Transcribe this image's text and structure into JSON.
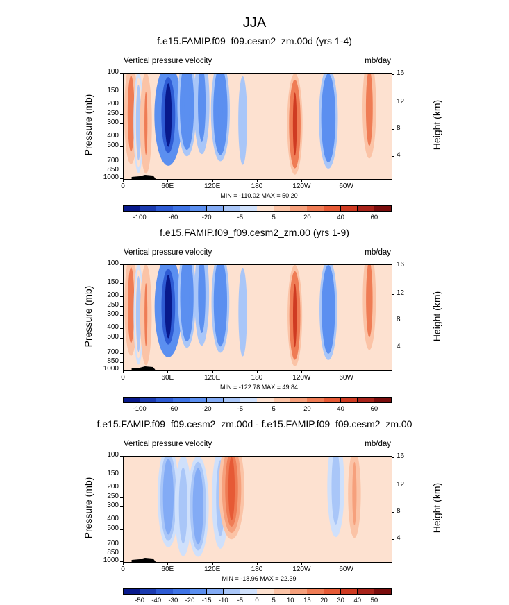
{
  "page_title": "JJA",
  "panels": [
    {
      "title": "f.e15.FAMIP.f09_f09.cesm2_zm.00d (yrs 1-4)",
      "subtitle_left": "Vertical pressure velocity",
      "subtitle_right": "mb/day",
      "minmax": "MIN = -110.02  MAX =  50.20"
    },
    {
      "title": "f.e15.FAMIP.f09_f09.cesm2_zm.00 (yrs 1-9)",
      "subtitle_left": "Vertical pressure velocity",
      "subtitle_right": "mb/day",
      "minmax": "MIN = -122.78  MAX =  49.84"
    },
    {
      "title": "f.e15.FAMIP.f09_f09.cesm2_zm.00d - f.e15.FAMIP.f09_f09.cesm2_zm.00",
      "subtitle_left": "Vertical pressure velocity",
      "subtitle_right": "mb/day",
      "minmax": "MIN = -18.96  MAX =  22.39"
    }
  ],
  "axes": {
    "y_left_title": "Pressure (mb)",
    "y_right_title": "Height (km)",
    "y_left_ticks": [
      "100",
      "150",
      "200",
      "250",
      "300",
      "400",
      "500",
      "700",
      "850",
      "1000"
    ],
    "y_right_ticks": [
      "16",
      "12",
      "8",
      "4"
    ],
    "x_ticks": [
      "0",
      "60E",
      "120E",
      "180",
      "120W",
      "60W"
    ]
  },
  "colorbars": {
    "main": {
      "labels": [
        "-100",
        "-60",
        "-20",
        "-5",
        "5",
        "20",
        "40",
        "60"
      ],
      "colors": [
        "#08198c",
        "#1b3bb0",
        "#2e5bd4",
        "#3f74e6",
        "#5b8ff0",
        "#83abf5",
        "#a9c6f8",
        "#cfe0fb",
        "#fde1d0",
        "#fbc3a6",
        "#f6a07c",
        "#ef7c55",
        "#e65a36",
        "#cf3b22",
        "#a8231a",
        "#7a0d0d"
      ]
    },
    "diff": {
      "labels": [
        "-50",
        "-40",
        "-30",
        "-20",
        "-15",
        "-10",
        "-5",
        "0",
        "5",
        "10",
        "15",
        "20",
        "30",
        "40",
        "50"
      ],
      "colors": [
        "#08198c",
        "#1b3bb0",
        "#2e5bd4",
        "#3f74e6",
        "#5b8ff0",
        "#83abf5",
        "#a9c6f8",
        "#cfe0fb",
        "#fde1d0",
        "#fbc3a6",
        "#f6a07c",
        "#ef7c55",
        "#e65a36",
        "#cf3b22",
        "#a8231a",
        "#7a0d0d"
      ]
    }
  },
  "chart_data": [
    {
      "type": "heatmap",
      "title": "f.e15.FAMIP.f09_f09.cesm2_zm.00d (yrs 1-4)",
      "subtitle": "Vertical pressure velocity",
      "units": "mb/day",
      "ylabel": "Pressure (mb)",
      "ylabel_right": "Height (km)",
      "x_ticks": [
        "0",
        "60E",
        "120E",
        "180",
        "120W",
        "60W"
      ],
      "y_ticks": [
        100,
        150,
        200,
        250,
        300,
        400,
        500,
        700,
        850,
        1000
      ],
      "ylim": [
        1000,
        100
      ],
      "y_scale": "log",
      "xlim": [
        0,
        360
      ],
      "min": -110.02,
      "max": 50.2,
      "contour_levels": [
        -100,
        -60,
        -20,
        -5,
        5,
        20,
        40,
        60
      ],
      "features": [
        {
          "lon": 10,
          "value": 30
        },
        {
          "lon": 20,
          "value": -10
        },
        {
          "lon": 30,
          "value": 20
        },
        {
          "lon": 60,
          "value": -110
        },
        {
          "lon": 85,
          "value": -60
        },
        {
          "lon": 105,
          "value": -40
        },
        {
          "lon": 130,
          "value": -60
        },
        {
          "lon": 160,
          "value": -20
        },
        {
          "lon": 230,
          "value": 40
        },
        {
          "lon": 275,
          "value": -60
        },
        {
          "lon": 330,
          "value": 30
        }
      ]
    },
    {
      "type": "heatmap",
      "title": "f.e15.FAMIP.f09_f09.cesm2_zm.00 (yrs 1-9)",
      "subtitle": "Vertical pressure velocity",
      "units": "mb/day",
      "ylabel": "Pressure (mb)",
      "ylabel_right": "Height (km)",
      "x_ticks": [
        "0",
        "60E",
        "120E",
        "180",
        "120W",
        "60W"
      ],
      "y_ticks": [
        100,
        150,
        200,
        250,
        300,
        400,
        500,
        700,
        850,
        1000
      ],
      "ylim": [
        1000,
        100
      ],
      "y_scale": "log",
      "xlim": [
        0,
        360
      ],
      "min": -122.78,
      "max": 49.84,
      "contour_levels": [
        -100,
        -60,
        -20,
        -5,
        5,
        20,
        40,
        60
      ],
      "features": [
        {
          "lon": 10,
          "value": 30
        },
        {
          "lon": 20,
          "value": -10
        },
        {
          "lon": 30,
          "value": 20
        },
        {
          "lon": 60,
          "value": -120
        },
        {
          "lon": 85,
          "value": -60
        },
        {
          "lon": 105,
          "value": -40
        },
        {
          "lon": 130,
          "value": -60
        },
        {
          "lon": 160,
          "value": -20
        },
        {
          "lon": 230,
          "value": 40
        },
        {
          "lon": 275,
          "value": -60
        },
        {
          "lon": 330,
          "value": 30
        }
      ]
    },
    {
      "type": "heatmap",
      "title": "f.e15.FAMIP.f09_f09.cesm2_zm.00d - f.e15.FAMIP.f09_f09.cesm2_zm.00",
      "subtitle": "Vertical pressure velocity",
      "units": "mb/day",
      "ylabel": "Pressure (mb)",
      "ylabel_right": "Height (km)",
      "x_ticks": [
        "0",
        "60E",
        "120E",
        "180",
        "120W",
        "60W"
      ],
      "y_ticks": [
        100,
        150,
        200,
        250,
        300,
        400,
        500,
        700,
        850,
        1000
      ],
      "ylim": [
        1000,
        100
      ],
      "y_scale": "log",
      "xlim": [
        0,
        360
      ],
      "min": -18.96,
      "max": 22.39,
      "contour_levels": [
        -50,
        -40,
        -30,
        -20,
        -15,
        -10,
        -5,
        0,
        5,
        10,
        15,
        20,
        30,
        40,
        50
      ],
      "features": [
        {
          "lon": 60,
          "value": -15
        },
        {
          "lon": 80,
          "value": -10
        },
        {
          "lon": 100,
          "value": -15
        },
        {
          "lon": 130,
          "value": -10
        },
        {
          "lon": 145,
          "value": 20
        },
        {
          "lon": 285,
          "value": -10
        },
        {
          "lon": 310,
          "value": 10
        }
      ]
    }
  ]
}
